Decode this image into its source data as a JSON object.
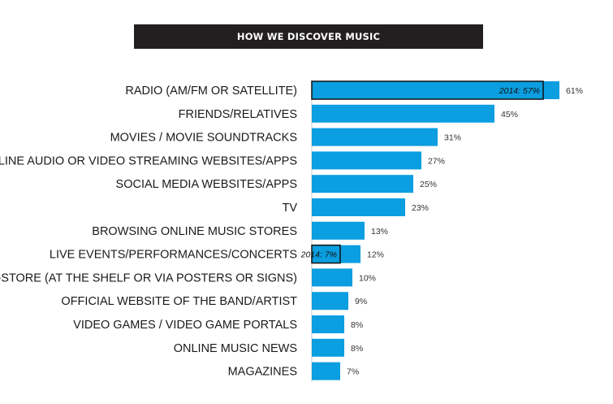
{
  "chart_data": {
    "type": "bar",
    "orientation": "horizontal",
    "title": "HOW WE DISCOVER MUSIC",
    "categories": [
      "RADIO (AM/FM OR SATELLITE)",
      "FRIENDS/RELATIVES",
      "MOVIES / MOVIE SOUNDTRACKS",
      "ONLINE AUDIO OR VIDEO STREAMING WEBSITES/APPS",
      "SOCIAL MEDIA WEBSITES/APPS",
      "TV",
      "BROWSING ONLINE MUSIC STORES",
      "LIVE EVENTS/PERFORMANCES/CONCERTS",
      "IN-STORE (AT THE SHELF OR VIA POSTERS OR SIGNS)",
      "OFFICIAL WEBSITE OF THE BAND/ARTIST",
      "VIDEO GAMES / VIDEO GAME PORTALS",
      "ONLINE MUSIC NEWS",
      "MAGAZINES"
    ],
    "values": [
      61,
      45,
      31,
      27,
      25,
      23,
      13,
      12,
      10,
      9,
      8,
      8,
      7
    ],
    "value_labels": [
      "61%",
      "45%",
      "31%",
      "27%",
      "25%",
      "23%",
      "13%",
      "12%",
      "10%",
      "9%",
      "8%",
      "8%",
      "7%"
    ],
    "comparison_2014": [
      {
        "category": "RADIO (AM/FM OR SATELLITE)",
        "value": 57,
        "label": "2014: 57%"
      },
      {
        "category": "LIVE EVENTS/PERFORMANCES/CONCERTS",
        "value": 7,
        "label": "2014: 7%"
      }
    ],
    "unit": "%",
    "grid": false,
    "colors": {
      "bar": "#0b9ee0",
      "outline": "#111111",
      "title_bg": "#231f20"
    }
  }
}
